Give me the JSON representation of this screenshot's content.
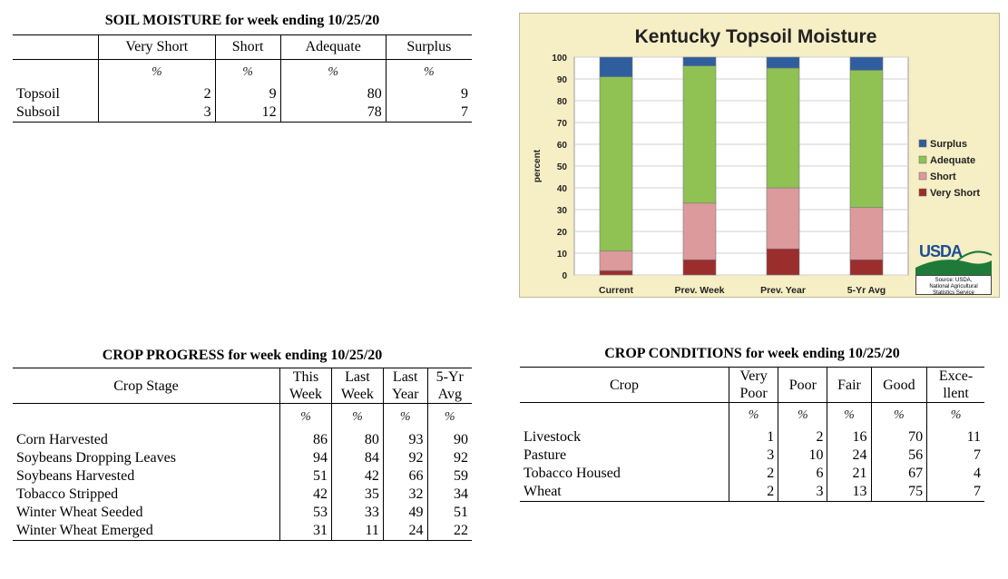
{
  "soil_moisture": {
    "title": "SOIL MOISTURE for week ending 10/25/20",
    "columns": [
      "Very Short",
      "Short",
      "Adequate",
      "Surplus"
    ],
    "unit": "%",
    "rows": [
      {
        "label": "Topsoil",
        "values": [
          "2",
          "9",
          "80",
          "9"
        ]
      },
      {
        "label": "Subsoil",
        "values": [
          "3",
          "12",
          "78",
          "7"
        ]
      }
    ]
  },
  "crop_progress": {
    "title": "CROP PROGRESS for week ending 10/25/20",
    "stage_header": "Crop Stage",
    "columns": [
      {
        "line1": "This",
        "line2": "Week"
      },
      {
        "line1": "Last",
        "line2": "Week"
      },
      {
        "line1": "Last",
        "line2": "Year"
      },
      {
        "line1": "5-Yr",
        "line2": "Avg"
      }
    ],
    "unit": "%",
    "rows": [
      {
        "label": "Corn Harvested",
        "values": [
          "86",
          "80",
          "93",
          "90"
        ]
      },
      {
        "label": "Soybeans Dropping Leaves",
        "values": [
          "94",
          "84",
          "92",
          "92"
        ]
      },
      {
        "label": "Soybeans Harvested",
        "values": [
          "51",
          "42",
          "66",
          "59"
        ]
      },
      {
        "label": "Tobacco Stripped",
        "values": [
          "42",
          "35",
          "32",
          "34"
        ]
      },
      {
        "label": "Winter Wheat Seeded",
        "values": [
          "53",
          "33",
          "49",
          "51"
        ]
      },
      {
        "label": "Winter Wheat Emerged",
        "values": [
          "31",
          "11",
          "24",
          "22"
        ]
      }
    ]
  },
  "crop_conditions": {
    "title": "CROP CONDITIONS for week ending 10/25/20",
    "crop_header": "Crop",
    "columns": [
      {
        "line1": "Very",
        "line2": "Poor"
      },
      {
        "line1": "Poor",
        "line2": ""
      },
      {
        "line1": "Fair",
        "line2": ""
      },
      {
        "line1": "Good",
        "line2": ""
      },
      {
        "line1": "Exce-",
        "line2": "llent"
      }
    ],
    "unit": "%",
    "rows": [
      {
        "label": "Livestock",
        "values": [
          "1",
          "2",
          "16",
          "70",
          "11"
        ]
      },
      {
        "label": "Pasture",
        "values": [
          "3",
          "10",
          "24",
          "56",
          "7"
        ]
      },
      {
        "label": "Tobacco Housed",
        "values": [
          "2",
          "6",
          "21",
          "67",
          "4"
        ]
      },
      {
        "label": "Wheat",
        "values": [
          "2",
          "3",
          "13",
          "75",
          "7"
        ]
      }
    ]
  },
  "chart_data": {
    "type": "bar",
    "stacked": true,
    "title": "Kentucky Topsoil Moisture",
    "ylabel": "percent",
    "xlabel": "",
    "ylim": [
      0,
      100
    ],
    "yticks": [
      0,
      10,
      20,
      30,
      40,
      50,
      60,
      70,
      80,
      90,
      100
    ],
    "categories": [
      "Current",
      "Prev. Week",
      "Prev. Year",
      "5-Yr Avg"
    ],
    "series": [
      {
        "name": "Very Short",
        "color": "#9b2d2d",
        "values": [
          2,
          7,
          12,
          7
        ]
      },
      {
        "name": "Short",
        "color": "#dc9a9c",
        "values": [
          9,
          26,
          28,
          24
        ]
      },
      {
        "name": "Adequate",
        "color": "#8fc153",
        "values": [
          80,
          63,
          55,
          63
        ]
      },
      {
        "name": "Surplus",
        "color": "#2f5e9e",
        "values": [
          9,
          4,
          5,
          6
        ]
      }
    ],
    "legend_placement": "right",
    "legend_order": [
      "Surplus",
      "Adequate",
      "Short",
      "Very Short"
    ],
    "grid": true,
    "logo_text": "USDA",
    "source_line1": "Source: USDA,",
    "source_line2": "National Agricultural",
    "source_line3": "Statistics Service",
    "background": "#f6eec4"
  }
}
